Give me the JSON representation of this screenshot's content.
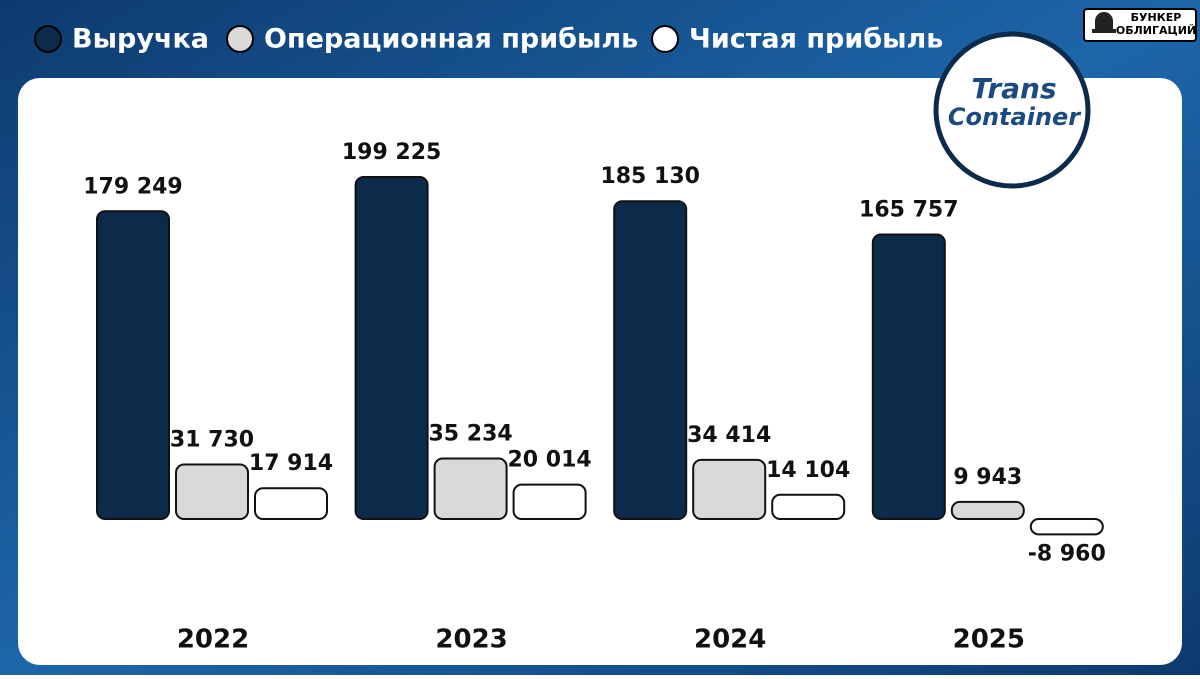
{
  "chart_data": {
    "type": "bar",
    "categories": [
      "2022",
      "2023",
      "2024",
      "2025"
    ],
    "series": [
      {
        "name": "Выручка",
        "color": "#0c2a4a",
        "values": [
          179249,
          199225,
          185130,
          165757
        ],
        "value_labels": [
          "179 249",
          "199 225",
          "185 130",
          "165 757"
        ]
      },
      {
        "name": "Операционная прибыль",
        "color": "#d9d9d9",
        "values": [
          31730,
          35234,
          34414,
          9943
        ],
        "value_labels": [
          "31 730",
          "35 234",
          "34 414",
          "9 943"
        ]
      },
      {
        "name": "Чистая прибыль",
        "color": "#ffffff",
        "values": [
          17914,
          20014,
          14104,
          -8960
        ],
        "value_labels": [
          "17 914",
          "20 014",
          "14 104",
          "-8 960"
        ]
      }
    ]
  },
  "logo": {
    "line1": "Trans",
    "line2": "Container"
  },
  "badge": {
    "line1": "БУНКЕР",
    "line2": "ОБЛИГАЦИЙ"
  }
}
